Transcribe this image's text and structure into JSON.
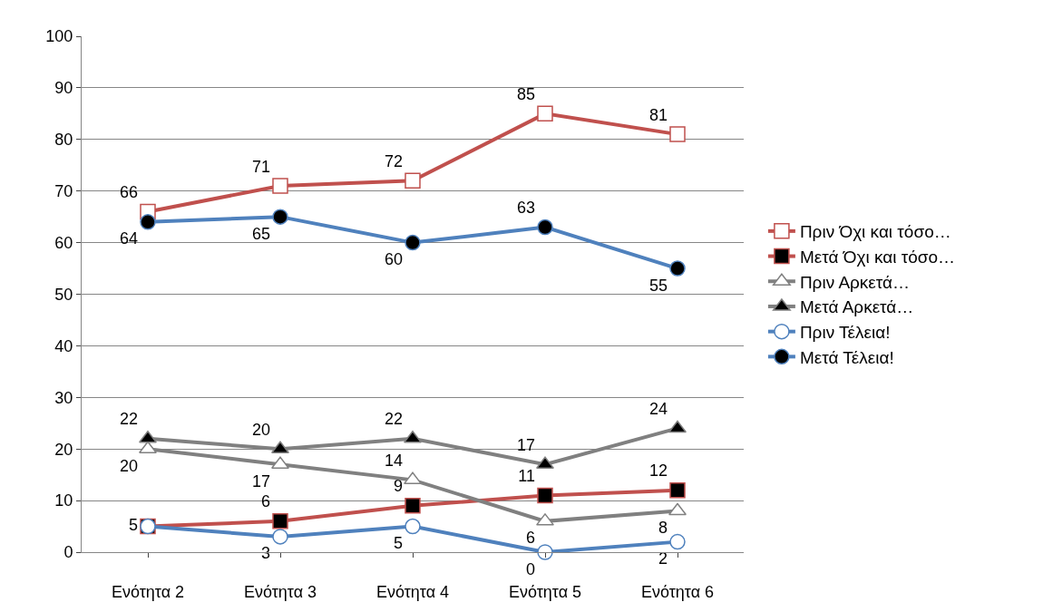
{
  "chart_data": {
    "type": "line",
    "categories": [
      "Ενότητα 2",
      "Ενότητα 3",
      "Ενότητα 4",
      "Ενότητα 5",
      "Ενότητα 6"
    ],
    "series": [
      {
        "name": "Πριν Όχι και τόσο…",
        "color": "#c0504d",
        "marker": "square",
        "values": [
          66,
          71,
          72,
          85,
          81
        ]
      },
      {
        "name": "Μετά Όχι και τόσο…",
        "color": "#c0504d",
        "marker": "square",
        "values": [
          5,
          6,
          9,
          11,
          12
        ]
      },
      {
        "name": "Πριν Αρκετά…",
        "color": "#808080",
        "marker": "triangle",
        "values": [
          20,
          17,
          14,
          6,
          8
        ]
      },
      {
        "name": "Μετά Αρκετά…",
        "color": "#808080",
        "marker": "triangle",
        "values": [
          22,
          20,
          22,
          17,
          24
        ]
      },
      {
        "name": "Πριν Τέλεια!",
        "color": "#4f81bd",
        "marker": "circle",
        "values": [
          5,
          3,
          5,
          0,
          2
        ],
        "value_labels": [
          null,
          "3",
          "5",
          "0",
          "2"
        ]
      },
      {
        "name": "Μετά Τέλεια!",
        "color": "#4f81bd",
        "marker": "circle",
        "values": [
          64,
          65,
          60,
          63,
          55
        ]
      }
    ],
    "ylim": [
      0,
      100
    ],
    "yticks": [
      0,
      10,
      20,
      30,
      40,
      50,
      60,
      70,
      80,
      90,
      100
    ],
    "grid": "y",
    "legend": "right",
    "data_labels": true,
    "line_style": "solid"
  }
}
